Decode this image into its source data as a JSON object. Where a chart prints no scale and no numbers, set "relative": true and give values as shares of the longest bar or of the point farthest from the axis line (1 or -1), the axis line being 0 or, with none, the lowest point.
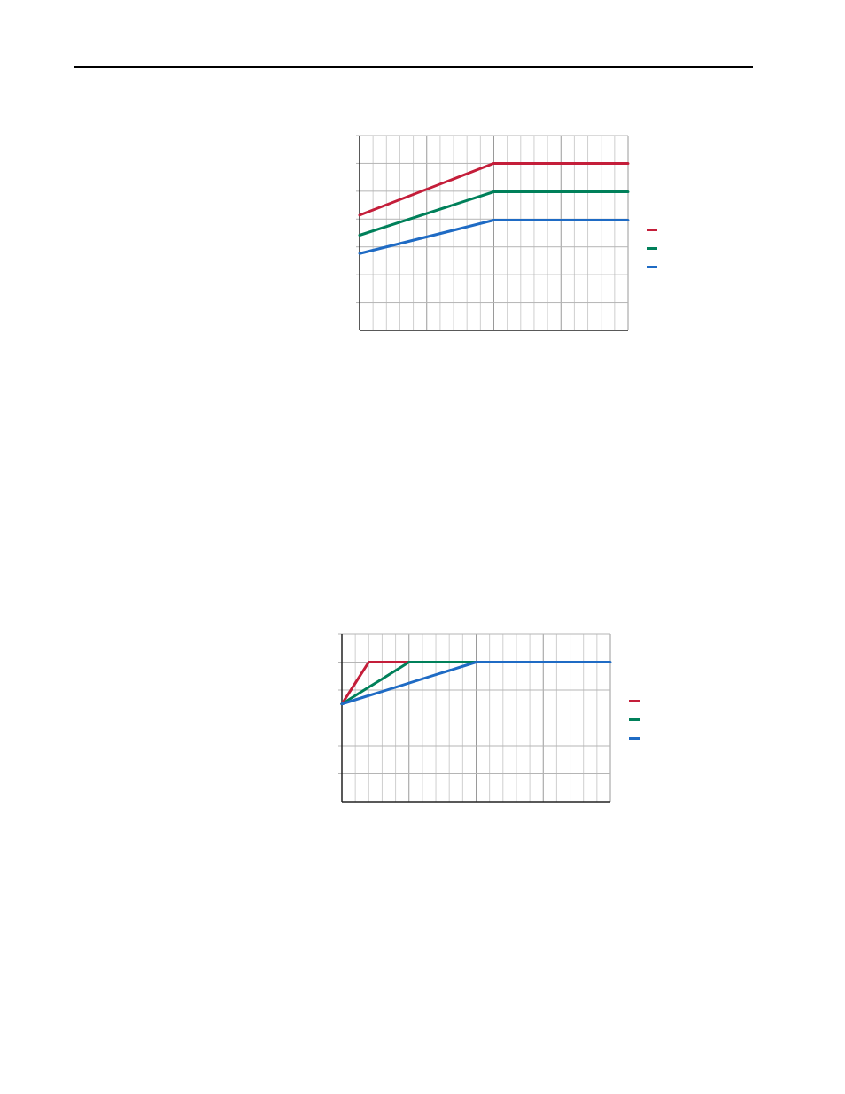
{
  "chart_data": [
    {
      "type": "line",
      "relative": true,
      "grid": true,
      "categories": [
        null,
        null,
        null
      ],
      "series": [
        {
          "color": "#c41e3a",
          "values": [
            0.69,
            1,
            1
          ]
        },
        {
          "color": "#00805a",
          "values": [
            0.57,
            0.83,
            0.83
          ]
        },
        {
          "color": "#1f6bc4",
          "values": [
            0.46,
            0.66,
            0.66
          ]
        }
      ]
    },
    {
      "type": "line",
      "relative": true,
      "grid": true,
      "categories": [
        null,
        null,
        null,
        null,
        null,
        null,
        null,
        null,
        null,
        null,
        null,
        null,
        null,
        null,
        null,
        null,
        null,
        null,
        null,
        null,
        null
      ],
      "series": [
        {
          "color": "#c41e3a",
          "values": [
            0.7,
            0.85,
            1,
            1,
            1,
            1,
            null,
            null,
            null,
            null,
            null,
            null,
            null,
            null,
            null,
            null,
            null,
            null,
            null,
            null,
            null
          ]
        },
        {
          "color": "#00805a",
          "values": [
            0.7,
            0.76,
            0.82,
            0.88,
            0.94,
            1,
            1,
            1,
            1,
            1,
            1,
            null,
            null,
            null,
            null,
            null,
            null,
            null,
            null,
            null,
            null
          ]
        },
        {
          "color": "#1f6bc4",
          "values": [
            0.7,
            0.73,
            0.76,
            0.79,
            0.82,
            0.85,
            0.88,
            0.91,
            0.94,
            0.97,
            1,
            1,
            1,
            1,
            1,
            1,
            1,
            1,
            1,
            1,
            1
          ]
        }
      ]
    }
  ]
}
